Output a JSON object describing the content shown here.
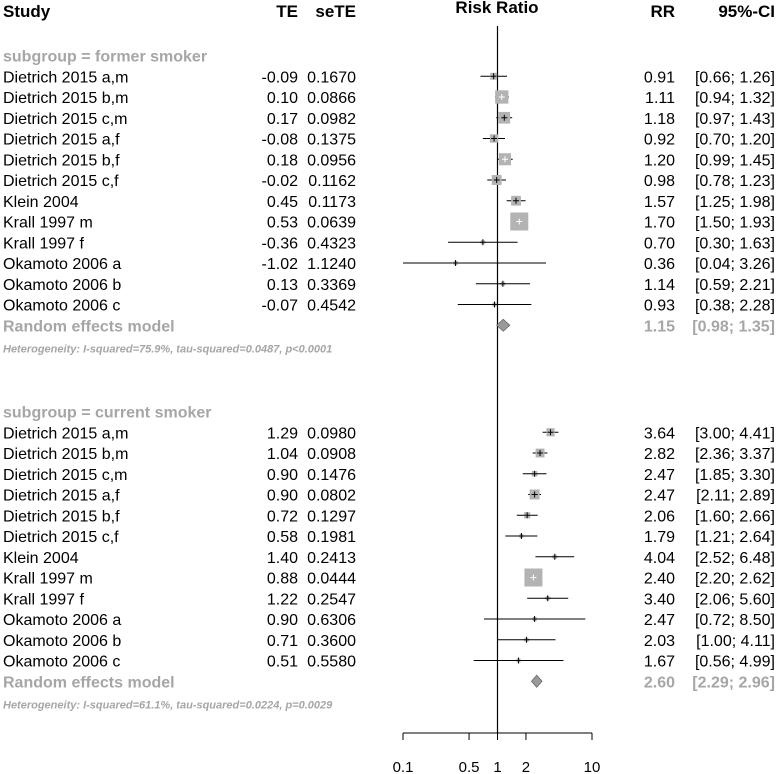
{
  "chart_data": {
    "type": "forest",
    "scale": "log",
    "xlim": [
      0.1,
      10
    ],
    "xticks": [
      "0.1",
      "0.5",
      "1",
      "2",
      "10"
    ],
    "columns": {
      "study": "Study",
      "te": "TE",
      "sete": "seTE",
      "plot": "Risk Ratio",
      "rr": "RR",
      "ci": "95%-CI"
    },
    "subgroups": [
      {
        "label": "subgroup = former smoker",
        "studies": [
          {
            "name": "Dietrich 2015 a,m",
            "te": "-0.09",
            "sete": "0.1670",
            "rr": 0.91,
            "lo": 0.66,
            "hi": 1.26,
            "rr_text": "0.91",
            "ci_text": "[0.66; 1.26]"
          },
          {
            "name": "Dietrich 2015 b,m",
            "te": "0.10",
            "sete": "0.0866",
            "rr": 1.11,
            "lo": 0.94,
            "hi": 1.32,
            "rr_text": "1.11",
            "ci_text": "[0.94; 1.32]"
          },
          {
            "name": "Dietrich 2015 c,m",
            "te": "0.17",
            "sete": "0.0982",
            "rr": 1.18,
            "lo": 0.97,
            "hi": 1.43,
            "rr_text": "1.18",
            "ci_text": "[0.97; 1.43]"
          },
          {
            "name": "Dietrich 2015 a,f",
            "te": "-0.08",
            "sete": "0.1375",
            "rr": 0.92,
            "lo": 0.7,
            "hi": 1.2,
            "rr_text": "0.92",
            "ci_text": "[0.70; 1.20]"
          },
          {
            "name": "Dietrich 2015 b,f",
            "te": "0.18",
            "sete": "0.0956",
            "rr": 1.2,
            "lo": 0.99,
            "hi": 1.45,
            "rr_text": "1.20",
            "ci_text": "[0.99; 1.45]"
          },
          {
            "name": "Dietrich 2015 c,f",
            "te": "-0.02",
            "sete": "0.1162",
            "rr": 0.98,
            "lo": 0.78,
            "hi": 1.23,
            "rr_text": "0.98",
            "ci_text": "[0.78; 1.23]"
          },
          {
            "name": "Klein 2004",
            "te": "0.45",
            "sete": "0.1173",
            "rr": 1.57,
            "lo": 1.25,
            "hi": 1.98,
            "rr_text": "1.57",
            "ci_text": "[1.25; 1.98]"
          },
          {
            "name": "Krall 1997 m",
            "te": "0.53",
            "sete": "0.0639",
            "rr": 1.7,
            "lo": 1.5,
            "hi": 1.93,
            "rr_text": "1.70",
            "ci_text": "[1.50; 1.93]"
          },
          {
            "name": "Krall 1997 f",
            "te": "-0.36",
            "sete": "0.4323",
            "rr": 0.7,
            "lo": 0.3,
            "hi": 1.63,
            "rr_text": "0.70",
            "ci_text": "[0.30; 1.63]"
          },
          {
            "name": "Okamoto 2006 a",
            "te": "-1.02",
            "sete": "1.1240",
            "rr": 0.36,
            "lo": 0.04,
            "hi": 3.26,
            "rr_text": "0.36",
            "ci_text": "[0.04; 3.26]"
          },
          {
            "name": "Okamoto 2006 b",
            "te": "0.13",
            "sete": "0.3369",
            "rr": 1.14,
            "lo": 0.59,
            "hi": 2.21,
            "rr_text": "1.14",
            "ci_text": "[0.59; 2.21]"
          },
          {
            "name": "Okamoto 2006 c",
            "te": "-0.07",
            "sete": "0.4542",
            "rr": 0.93,
            "lo": 0.38,
            "hi": 2.28,
            "rr_text": "0.93",
            "ci_text": "[0.38; 2.28]"
          }
        ],
        "model": {
          "label": "Random effects model",
          "rr": 1.15,
          "lo": 0.98,
          "hi": 1.35,
          "rr_text": "1.15",
          "ci_text": "[0.98; 1.35]"
        },
        "heterogeneity": "Heterogeneity: I-squared=75.9%, tau-squared=0.0487, p<0.0001"
      },
      {
        "label": "subgroup = current smoker",
        "studies": [
          {
            "name": "Dietrich 2015 a,m",
            "te": "1.29",
            "sete": "0.0980",
            "rr": 3.64,
            "lo": 3.0,
            "hi": 4.41,
            "rr_text": "3.64",
            "ci_text": "[3.00; 4.41]"
          },
          {
            "name": "Dietrich 2015 b,m",
            "te": "1.04",
            "sete": "0.0908",
            "rr": 2.82,
            "lo": 2.36,
            "hi": 3.37,
            "rr_text": "2.82",
            "ci_text": "[2.36; 3.37]"
          },
          {
            "name": "Dietrich 2015 c,m",
            "te": "0.90",
            "sete": "0.1476",
            "rr": 2.47,
            "lo": 1.85,
            "hi": 3.3,
            "rr_text": "2.47",
            "ci_text": "[1.85; 3.30]"
          },
          {
            "name": "Dietrich 2015 a,f",
            "te": "0.90",
            "sete": "0.0802",
            "rr": 2.47,
            "lo": 2.11,
            "hi": 2.89,
            "rr_text": "2.47",
            "ci_text": "[2.11; 2.89]"
          },
          {
            "name": "Dietrich 2015 b,f",
            "te": "0.72",
            "sete": "0.1297",
            "rr": 2.06,
            "lo": 1.6,
            "hi": 2.66,
            "rr_text": "2.06",
            "ci_text": "[1.60; 2.66]"
          },
          {
            "name": "Dietrich 2015 c,f",
            "te": "0.58",
            "sete": "0.1981",
            "rr": 1.79,
            "lo": 1.21,
            "hi": 2.64,
            "rr_text": "1.79",
            "ci_text": "[1.21; 2.64]"
          },
          {
            "name": "Klein 2004",
            "te": "1.40",
            "sete": "0.2413",
            "rr": 4.04,
            "lo": 2.52,
            "hi": 6.48,
            "rr_text": "4.04",
            "ci_text": "[2.52; 6.48]"
          },
          {
            "name": "Krall 1997 m",
            "te": "0.88",
            "sete": "0.0444",
            "rr": 2.4,
            "lo": 2.2,
            "hi": 2.62,
            "rr_text": "2.40",
            "ci_text": "[2.20; 2.62]"
          },
          {
            "name": "Krall 1997 f",
            "te": "1.22",
            "sete": "0.2547",
            "rr": 3.4,
            "lo": 2.06,
            "hi": 5.6,
            "rr_text": "3.40",
            "ci_text": "[2.06; 5.60]"
          },
          {
            "name": "Okamoto 2006 a",
            "te": "0.90",
            "sete": "0.6306",
            "rr": 2.47,
            "lo": 0.72,
            "hi": 8.5,
            "rr_text": "2.47",
            "ci_text": "[0.72; 8.50]"
          },
          {
            "name": "Okamoto 2006 b",
            "te": "0.71",
            "sete": "0.3600",
            "rr": 2.03,
            "lo": 1.0,
            "hi": 4.11,
            "rr_text": "2.03",
            "ci_text": "[1.00; 4.11]"
          },
          {
            "name": "Okamoto 2006 c",
            "te": "0.51",
            "sete": "0.5580",
            "rr": 1.67,
            "lo": 0.56,
            "hi": 4.99,
            "rr_text": "1.67",
            "ci_text": "[0.56; 4.99]"
          }
        ],
        "model": {
          "label": "Random effects model",
          "rr": 2.6,
          "lo": 2.29,
          "hi": 2.96,
          "rr_text": "2.60",
          "ci_text": "[2.29; 2.96]"
        },
        "heterogeneity": "Heterogeneity: I-squared=61.1%, tau-squared=0.0224, p=0.0029"
      }
    ]
  },
  "colors": {
    "box": "#b3b3b3",
    "subgroup_text": "#a6a6a6",
    "diamond_fill": "#9a9a9a",
    "line": "#000000"
  }
}
